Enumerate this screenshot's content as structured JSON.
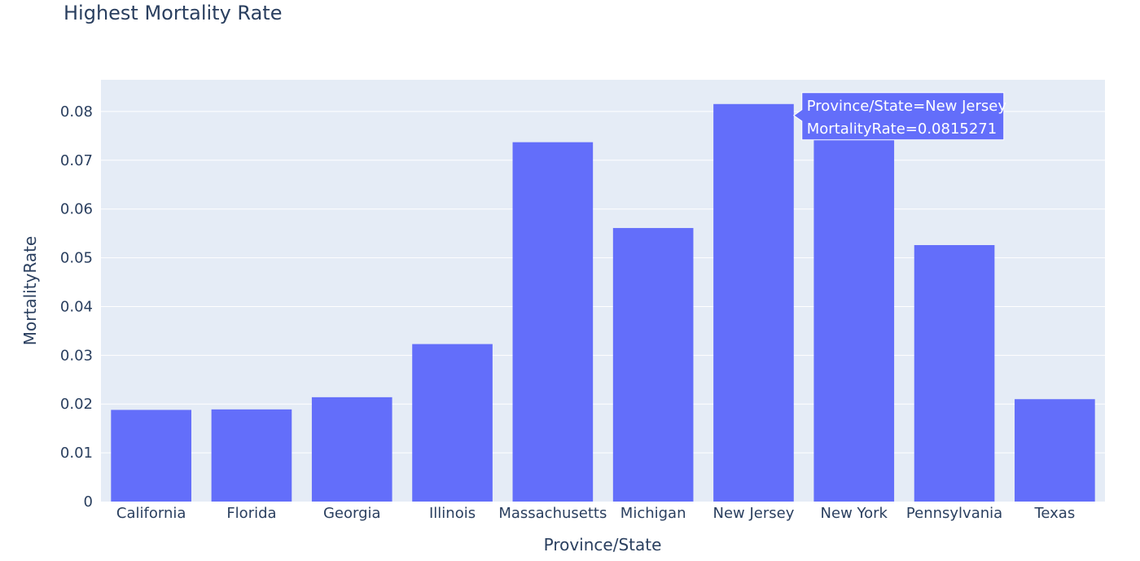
{
  "chart_data": {
    "type": "bar",
    "title": "Highest Mortality Rate",
    "xlabel": "Province/State",
    "ylabel": "MortalityRate",
    "categories": [
      "California",
      "Florida",
      "Georgia",
      "Illinois",
      "Massachusetts",
      "Michigan",
      "New Jersey",
      "New York",
      "Pennsylvania",
      "Texas"
    ],
    "values": [
      0.0188,
      0.0189,
      0.0214,
      0.0323,
      0.0737,
      0.0561,
      0.0815271,
      0.0742,
      0.0526,
      0.021
    ],
    "ylim": [
      0,
      0.0865
    ],
    "yticks": [
      0,
      0.01,
      0.02,
      0.03,
      0.04,
      0.05,
      0.06,
      0.07,
      0.08
    ],
    "ytick_labels": [
      "0",
      "0.01",
      "0.02",
      "0.03",
      "0.04",
      "0.05",
      "0.06",
      "0.07",
      "0.08"
    ],
    "grid": true,
    "colors": {
      "bar": "#636efa",
      "plot_background": "#e5ecf6",
      "grid": "#ffffff",
      "text": "#2a3f5f",
      "tooltip_text": "#ffffff"
    },
    "hover": {
      "category": "New Jersey",
      "lines": [
        "Province/State=New Jersey",
        "MortalityRate=0.0815271"
      ]
    }
  }
}
